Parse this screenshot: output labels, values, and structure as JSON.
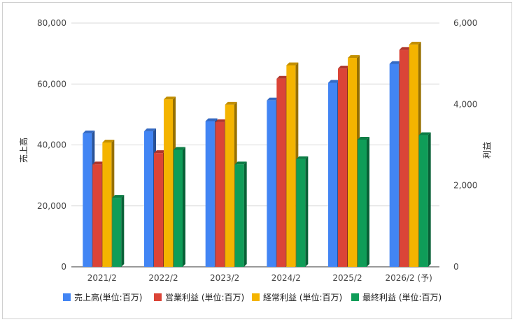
{
  "chart_data": {
    "type": "bar",
    "categories": [
      "2021/2",
      "2022/2",
      "2023/2",
      "2024/2",
      "2025/2",
      "2026/2 (予)"
    ],
    "series": [
      {
        "name": "売上高(単位:百万)",
        "axis": "left",
        "color": "#4285f4",
        "values": [
          43800,
          44500,
          47800,
          54600,
          60400,
          66600
        ]
      },
      {
        "name": "営業利益 (単位:百万)",
        "axis": "right",
        "color": "#db4437",
        "values": [
          2520,
          2800,
          3560,
          4630,
          4880,
          5340
        ]
      },
      {
        "name": "経常利益 (単位:百万)",
        "axis": "right",
        "color": "#f4b400",
        "values": [
          3060,
          4120,
          3990,
          4960,
          5140,
          5470
        ]
      },
      {
        "name": "最終利益 (単位:百万)",
        "axis": "right",
        "color": "#0f9d58",
        "values": [
          1700,
          2880,
          2520,
          2650,
          3130,
          3240
        ]
      }
    ],
    "ylabel_left": "売上高",
    "ylabel_right": "利益",
    "ylim_left": [
      0,
      80000
    ],
    "ylim_right": [
      0,
      6000
    ],
    "yticks_left": [
      "0",
      "20,000",
      "40,000",
      "60,000",
      "80,000"
    ],
    "yticks_right": [
      "0",
      "2,000",
      "4,000",
      "6,000"
    ],
    "grid": true,
    "legend_position": "bottom"
  }
}
